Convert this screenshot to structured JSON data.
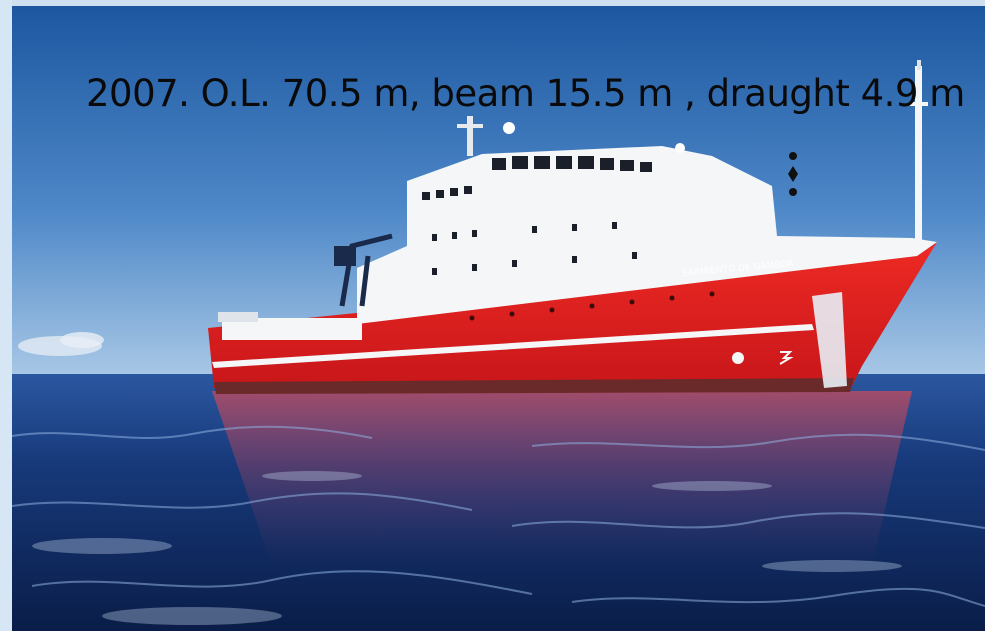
{
  "caption": {
    "text": "2007. O.L. 70.5 m, beam 15.5 m , draught 4.9 m"
  },
  "ship": {
    "hull_name": "SARMIENTO DE GAMBOA"
  },
  "colors": {
    "sky_top": "#1f5da6",
    "sky_bottom": "#8fb6df",
    "sea_dark": "#0b1f4a",
    "sea_mid": "#1a3f86",
    "hull_red": "#e5231f",
    "superstructure_white": "#f4f6f8"
  }
}
